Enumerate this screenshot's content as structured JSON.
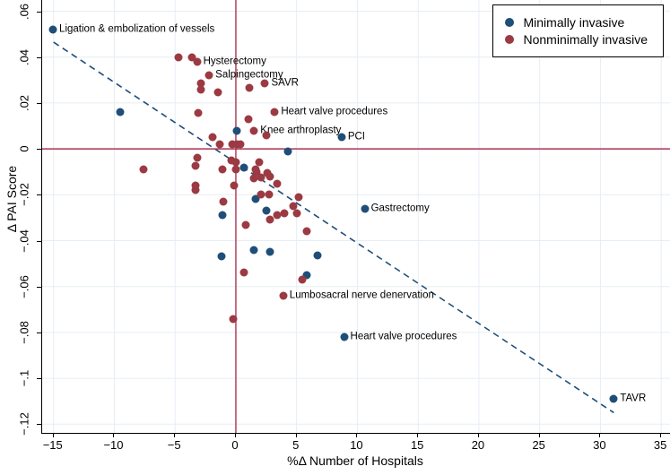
{
  "colors": {
    "navy": "#1f4e78",
    "maroon": "#9b3a42",
    "refline": "#ad3352",
    "grid": "#e7edf4",
    "axis": "#000000",
    "background": "#ffffff"
  },
  "chart_data": {
    "type": "scatter",
    "title": "",
    "xlabel": "%Δ Number of Hospitals",
    "ylabel": "Δ PAI Score",
    "xlim": [
      -15.94,
      35.8
    ],
    "ylim": [
      -0.1238,
      0.0649
    ],
    "grid": true,
    "x_ticks": [
      {
        "v": -15,
        "label": "−15"
      },
      {
        "v": -10,
        "label": "−10"
      },
      {
        "v": -5,
        "label": "−5"
      },
      {
        "v": 0,
        "label": "0"
      },
      {
        "v": 5,
        "label": "5"
      },
      {
        "v": 10,
        "label": "10"
      },
      {
        "v": 15,
        "label": "15"
      },
      {
        "v": 20,
        "label": "20"
      },
      {
        "v": 25,
        "label": "25"
      },
      {
        "v": 30,
        "label": "30"
      },
      {
        "v": 35,
        "label": "35"
      }
    ],
    "y_ticks": [
      {
        "v": 0.06,
        "label": ".06"
      },
      {
        "v": 0.04,
        "label": ".04"
      },
      {
        "v": 0.02,
        "label": ".02"
      },
      {
        "v": 0,
        "label": "0"
      },
      {
        "v": -0.02,
        "label": "−.02"
      },
      {
        "v": -0.04,
        "label": "−.04"
      },
      {
        "v": -0.06,
        "label": "−.06"
      },
      {
        "v": -0.08,
        "label": "−.08"
      },
      {
        "v": -0.1,
        "label": "−.1"
      },
      {
        "v": -0.12,
        "label": "−.12"
      }
    ],
    "reference_lines": {
      "x": 0,
      "y": 0
    },
    "trend_line": {
      "x1": -15.0,
      "y1": 0.0465,
      "x2": 31.1,
      "y2": -0.115,
      "style": "dashed"
    },
    "legend": {
      "position": "top-right",
      "items": [
        {
          "name": "Minimally invasive",
          "color": "#1f4e78"
        },
        {
          "name": "Nonminimally invasive",
          "color": "#9b3a42"
        }
      ]
    },
    "series": [
      {
        "name": "Minimally invasive",
        "color": "#1f4e78",
        "points": [
          [
            -15.05,
            0.052,
            "Ligation & embolization of vessels"
          ],
          [
            -9.5,
            0.016
          ],
          [
            0.07,
            0.008
          ],
          [
            8.7,
            0.005,
            "PCI"
          ],
          [
            4.3,
            -0.001
          ],
          [
            0.7,
            -0.008
          ],
          [
            1.6,
            -0.022
          ],
          [
            2.5,
            -0.027
          ],
          [
            -1.1,
            -0.029
          ],
          [
            1.5,
            -0.044
          ],
          [
            2.8,
            -0.045
          ],
          [
            -1.2,
            -0.047
          ],
          [
            6.7,
            -0.0465
          ],
          [
            5.8,
            -0.055
          ],
          [
            10.6,
            -0.026,
            "Gastrectomy"
          ],
          [
            8.9,
            -0.082,
            "Heart valve procedures"
          ],
          [
            31.1,
            -0.109,
            "TAVR"
          ]
        ]
      },
      {
        "name": "Nonminimally invasive",
        "color": "#9b3a42",
        "points": [
          [
            -4.7,
            0.04
          ],
          [
            -3.6,
            0.04
          ],
          [
            -3.2,
            0.038,
            "Hysterectomy"
          ],
          [
            -2.2,
            0.032,
            "Salpingectomy"
          ],
          [
            -2.9,
            0.0285
          ],
          [
            -2.9,
            0.026
          ],
          [
            -1.5,
            0.0245
          ],
          [
            1.1,
            0.0265
          ],
          [
            2.4,
            0.0285,
            "SAVR"
          ],
          [
            -3.1,
            0.0155
          ],
          [
            3.2,
            0.016,
            "Heart valve procedures"
          ],
          [
            1.0,
            0.013
          ],
          [
            1.5,
            0.008,
            "Knee arthroplasty"
          ],
          [
            -1.9,
            0.005
          ],
          [
            -1.3,
            0.002
          ],
          [
            -0.3,
            0.002
          ],
          [
            0.1,
            0.002
          ],
          [
            0.4,
            0.002
          ],
          [
            2.5,
            0.006
          ],
          [
            -7.6,
            -0.009
          ],
          [
            -3.2,
            -0.004
          ],
          [
            -0.4,
            -0.005
          ],
          [
            0.0,
            -0.006
          ],
          [
            1.9,
            -0.006
          ],
          [
            -3.3,
            -0.0075
          ],
          [
            -1.1,
            -0.009
          ],
          [
            0.0,
            -0.009
          ],
          [
            1.6,
            -0.009
          ],
          [
            1.7,
            -0.01
          ],
          [
            2.6,
            -0.0105
          ],
          [
            2.8,
            -0.012
          ],
          [
            2.1,
            -0.0125
          ],
          [
            1.5,
            -0.013
          ],
          [
            3.4,
            -0.015
          ],
          [
            -3.3,
            -0.016
          ],
          [
            -3.3,
            -0.018
          ],
          [
            -0.15,
            -0.016
          ],
          [
            2.1,
            -0.02
          ],
          [
            2.7,
            -0.02
          ],
          [
            5.2,
            -0.021
          ],
          [
            -1.0,
            -0.023
          ],
          [
            4.7,
            -0.025
          ],
          [
            4.0,
            -0.028
          ],
          [
            5.0,
            -0.028
          ],
          [
            3.4,
            -0.029
          ],
          [
            2.8,
            -0.031
          ],
          [
            0.8,
            -0.033
          ],
          [
            5.8,
            -0.036
          ],
          [
            0.7,
            -0.054
          ],
          [
            5.5,
            -0.057
          ],
          [
            3.9,
            -0.064,
            "Lumbosacral nerve denervation"
          ],
          [
            -0.2,
            -0.074
          ]
        ]
      }
    ]
  }
}
